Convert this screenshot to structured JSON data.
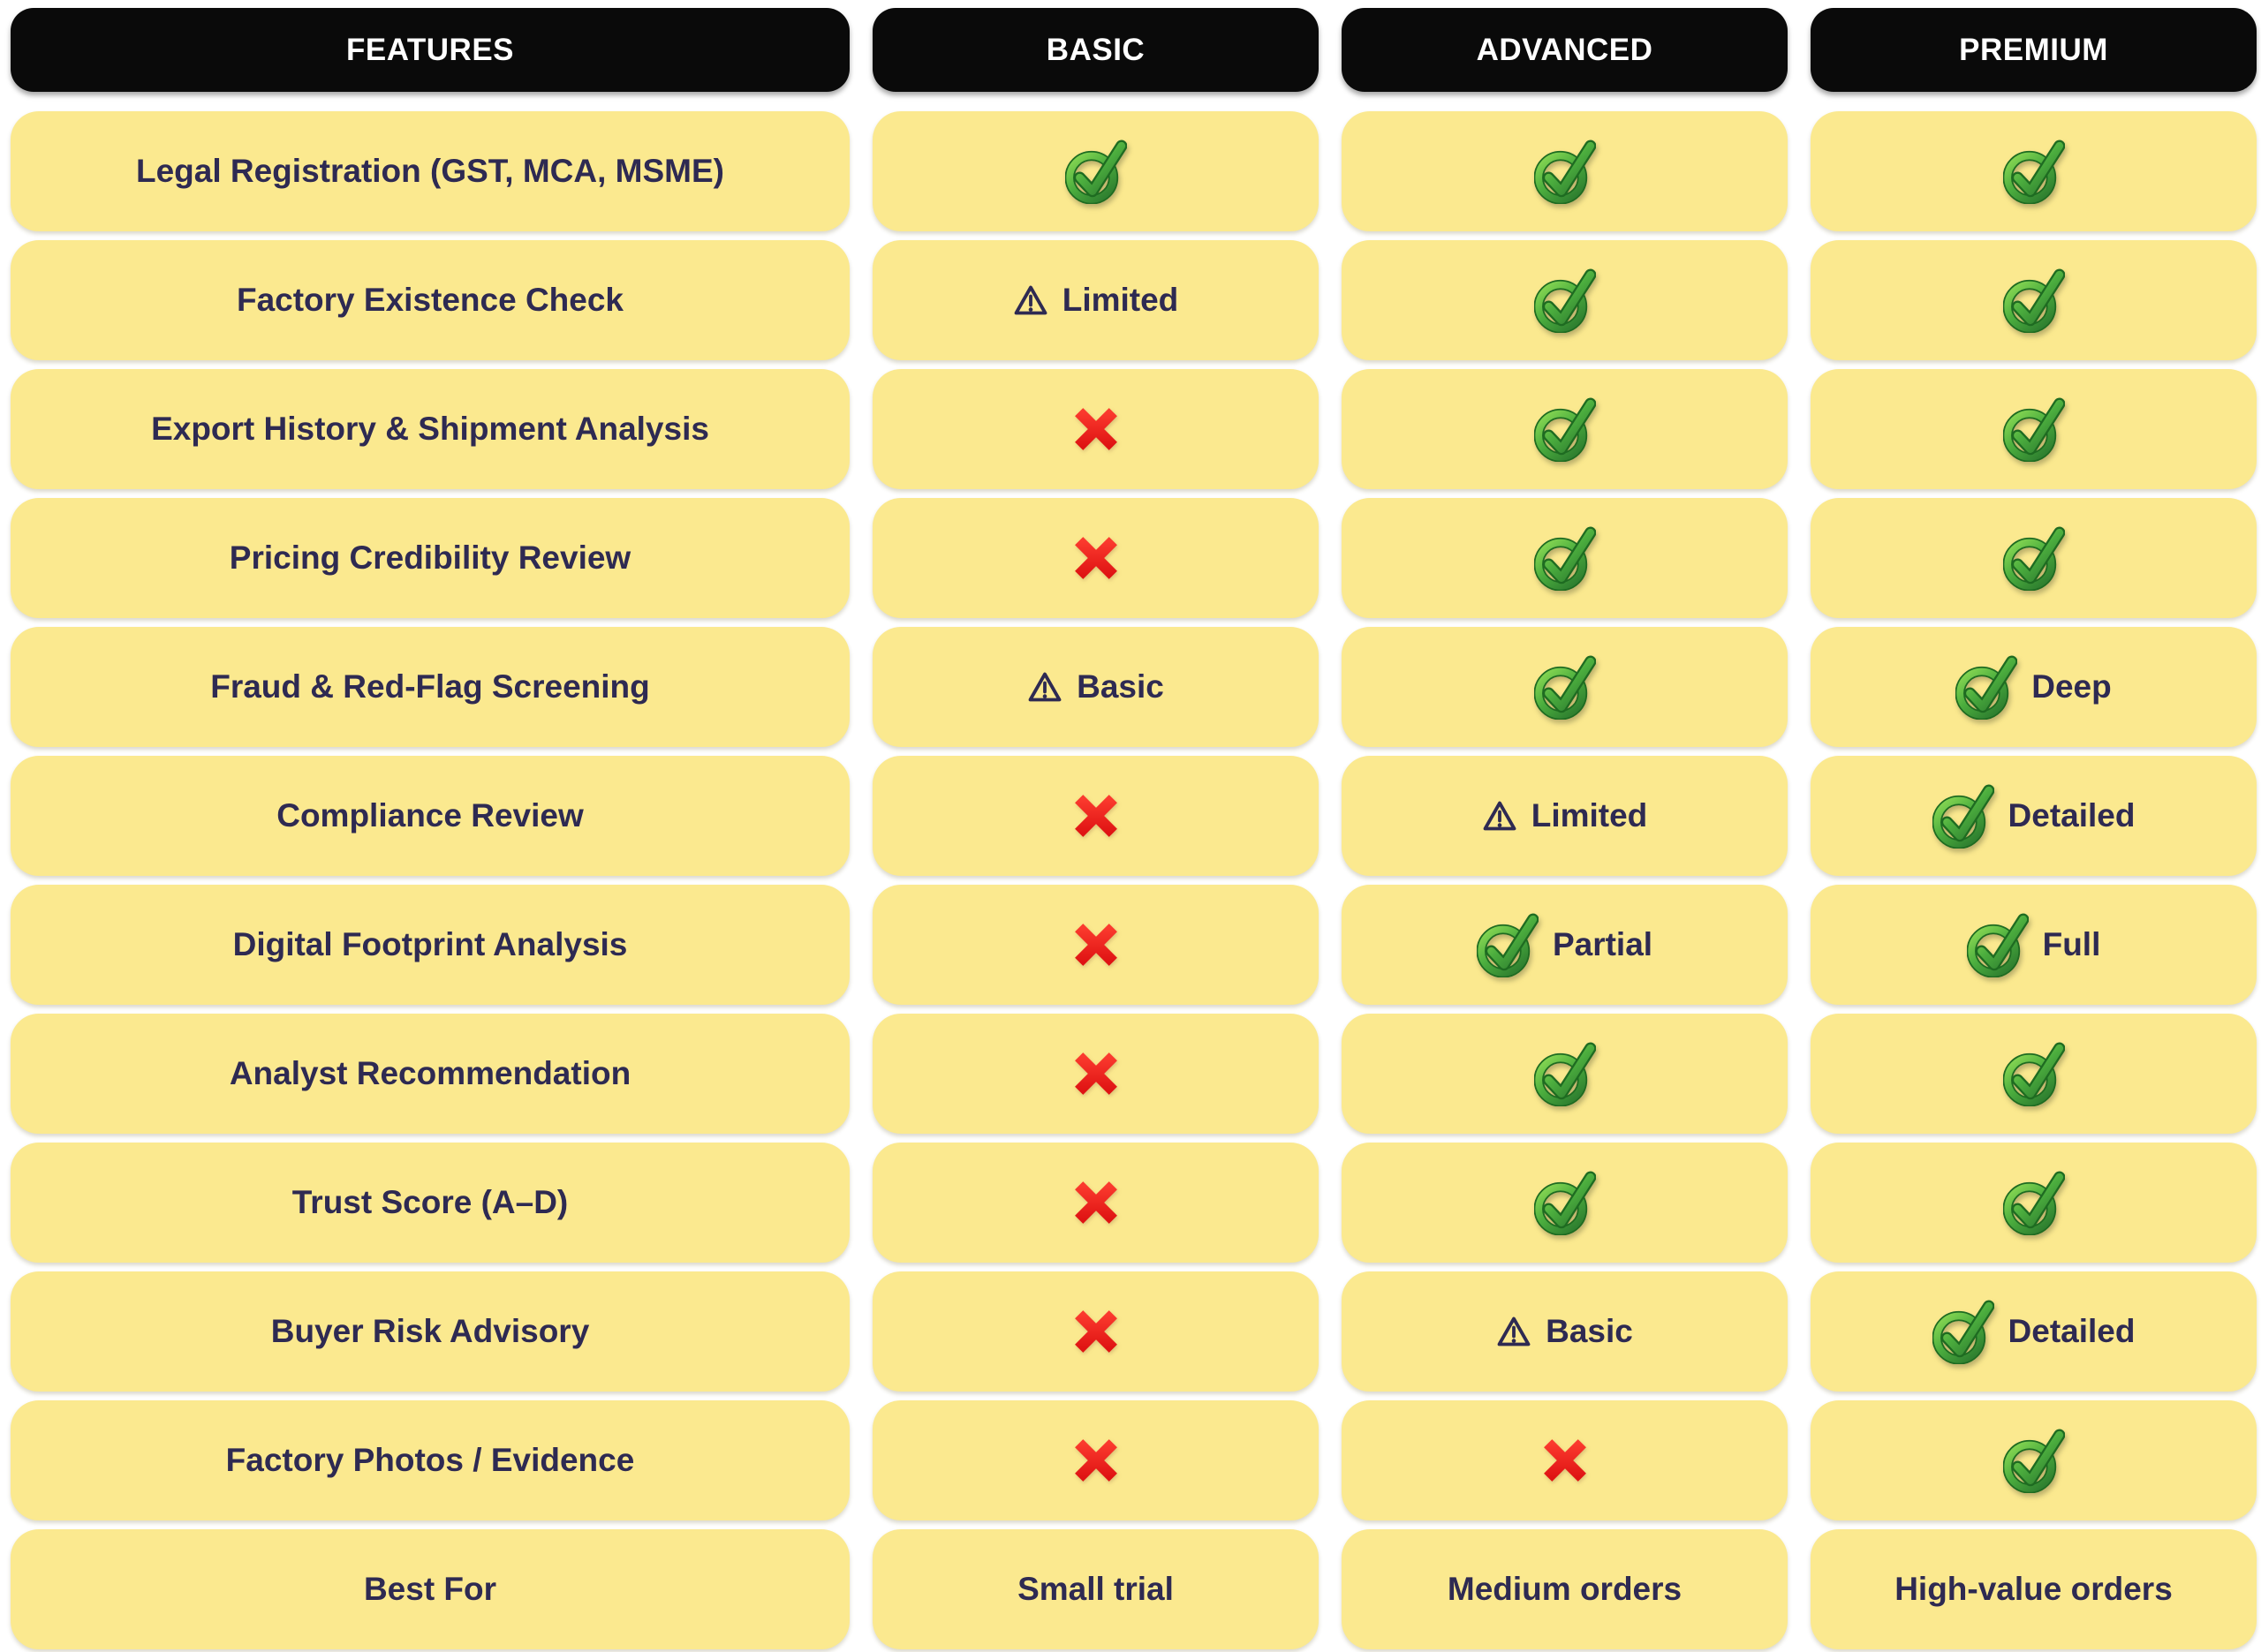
{
  "header": {
    "columns": [
      "FEATURES",
      "BASIC",
      "ADVANCED",
      "PREMIUM"
    ]
  },
  "colors": {
    "header_background": "#0A0A0A",
    "header_text": "#FFFFFF",
    "cell_yellow": "#FBE98F",
    "text_navy": "#2E2A52",
    "check_green_light": "#86D94F",
    "check_green_mid": "#4CAE3E",
    "check_green_dark": "#1E6B21",
    "cross_red_light": "#FB3A2E",
    "cross_red_dark": "#DF1313"
  },
  "icons": {
    "check": "check-icon",
    "cross": "cross-icon",
    "warning": "warning-icon"
  },
  "rows": [
    {
      "feature": "Legal Registration (GST, MCA, MSME)",
      "basic": {
        "type": "check"
      },
      "advanced": {
        "type": "check"
      },
      "premium": {
        "type": "check"
      }
    },
    {
      "feature": "Factory Existence Check",
      "basic": {
        "type": "warning",
        "label": "Limited"
      },
      "advanced": {
        "type": "check"
      },
      "premium": {
        "type": "check"
      }
    },
    {
      "feature": "Export History & Shipment Analysis",
      "basic": {
        "type": "cross"
      },
      "advanced": {
        "type": "check"
      },
      "premium": {
        "type": "check"
      }
    },
    {
      "feature": "Pricing Credibility Review",
      "basic": {
        "type": "cross"
      },
      "advanced": {
        "type": "check"
      },
      "premium": {
        "type": "check"
      }
    },
    {
      "feature": "Fraud & Red-Flag Screening",
      "basic": {
        "type": "warning",
        "label": "Basic"
      },
      "advanced": {
        "type": "check"
      },
      "premium": {
        "type": "check",
        "label": "Deep"
      }
    },
    {
      "feature": "Compliance Review",
      "basic": {
        "type": "cross"
      },
      "advanced": {
        "type": "warning",
        "label": "Limited"
      },
      "premium": {
        "type": "check",
        "label": "Detailed"
      }
    },
    {
      "feature": "Digital Footprint Analysis",
      "basic": {
        "type": "cross"
      },
      "advanced": {
        "type": "check",
        "label": "Partial"
      },
      "premium": {
        "type": "check",
        "label": "Full"
      }
    },
    {
      "feature": "Analyst Recommendation",
      "basic": {
        "type": "cross"
      },
      "advanced": {
        "type": "check"
      },
      "premium": {
        "type": "check"
      }
    },
    {
      "feature": "Trust Score (A–D)",
      "basic": {
        "type": "cross"
      },
      "advanced": {
        "type": "check"
      },
      "premium": {
        "type": "check"
      }
    },
    {
      "feature": "Buyer Risk Advisory",
      "basic": {
        "type": "cross"
      },
      "advanced": {
        "type": "warning",
        "label": "Basic"
      },
      "premium": {
        "type": "check",
        "label": "Detailed"
      }
    },
    {
      "feature": "Factory Photos / Evidence",
      "basic": {
        "type": "cross"
      },
      "advanced": {
        "type": "cross"
      },
      "premium": {
        "type": "check"
      }
    },
    {
      "feature": "Best For",
      "basic": {
        "type": "text",
        "label": "Small trial"
      },
      "advanced": {
        "type": "text",
        "label": "Medium orders"
      },
      "premium": {
        "type": "text",
        "label": "High-value orders"
      }
    }
  ]
}
